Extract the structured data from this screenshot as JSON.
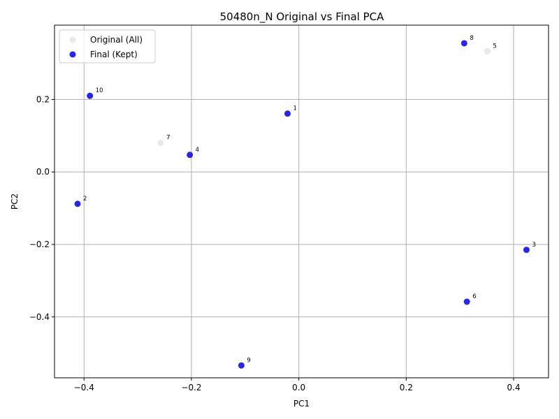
{
  "chart_data": {
    "type": "scatter",
    "title": "50480n_N Original vs Final PCA",
    "xlabel": "PC1",
    "ylabel": "PC2",
    "xlim": [
      -0.455,
      0.465
    ],
    "ylim": [
      -0.568,
      0.405
    ],
    "xticks": [
      -0.4,
      -0.2,
      0.0,
      0.2,
      0.4
    ],
    "xtick_labels": [
      "−0.4",
      "−0.2",
      "0.0",
      "0.2",
      "0.4"
    ],
    "yticks": [
      -0.4,
      -0.2,
      0.0,
      0.2
    ],
    "ytick_labels": [
      "−0.4",
      "−0.2",
      "0.0",
      "0.2"
    ],
    "grid": true,
    "legend_position": "top-left",
    "series": [
      {
        "name": "Original (All)",
        "color": "#e5e5e5",
        "points": [
          {
            "label": "7",
            "x": -0.257,
            "y": 0.08
          },
          {
            "label": "5",
            "x": 0.351,
            "y": 0.333
          }
        ]
      },
      {
        "name": "Final (Kept)",
        "color": "#0000ee",
        "points": [
          {
            "label": "8",
            "x": 0.308,
            "y": 0.355
          },
          {
            "label": "10",
            "x": -0.389,
            "y": 0.21
          },
          {
            "label": "1",
            "x": -0.021,
            "y": 0.161
          },
          {
            "label": "4",
            "x": -0.203,
            "y": 0.047
          },
          {
            "label": "2",
            "x": -0.412,
            "y": -0.088
          },
          {
            "label": "3",
            "x": 0.424,
            "y": -0.215
          },
          {
            "label": "6",
            "x": 0.313,
            "y": -0.358
          },
          {
            "label": "9",
            "x": -0.107,
            "y": -0.534
          }
        ]
      }
    ]
  }
}
